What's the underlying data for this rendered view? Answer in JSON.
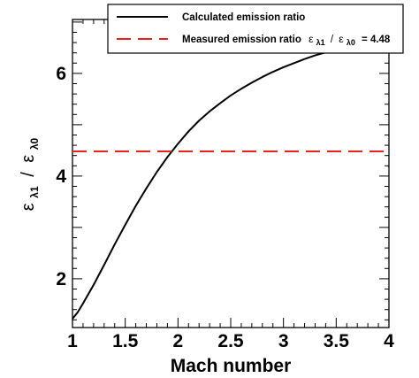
{
  "chart_data": {
    "type": "line",
    "title": "",
    "xlabel": "Mach number",
    "ylabel": {
      "sym1": "ε",
      "sub1": "λ1",
      "slash": "/",
      "sym2": "ε",
      "sub2": "λ0"
    },
    "xlim": [
      1,
      4
    ],
    "ylim": [
      1.05,
      7.05
    ],
    "x_ticks": [
      "1",
      "1.5",
      "2",
      "2.5",
      "3",
      "3.5",
      "4"
    ],
    "x_tick_values": [
      1,
      1.5,
      2,
      2.5,
      3,
      3.5,
      4
    ],
    "y_ticks": [
      "2",
      "4",
      "6"
    ],
    "y_tick_values": [
      2,
      4,
      6
    ],
    "grid": false,
    "legend_position": "top-right",
    "series": [
      {
        "name": "Calculated emission ratio",
        "color": "#000000",
        "style": "solid",
        "x": [
          1.0,
          1.05,
          1.1,
          1.2,
          1.3,
          1.4,
          1.5,
          1.6,
          1.7,
          1.8,
          1.9,
          2.0,
          2.1,
          2.2,
          2.3,
          2.4,
          2.5,
          2.6,
          2.7,
          2.8,
          2.9,
          3.0,
          3.1,
          3.2,
          3.3,
          3.4,
          3.5,
          3.6,
          3.65
        ],
        "y": [
          1.22,
          1.35,
          1.52,
          1.88,
          2.27,
          2.67,
          3.05,
          3.42,
          3.76,
          4.08,
          4.37,
          4.63,
          4.87,
          5.08,
          5.26,
          5.42,
          5.57,
          5.7,
          5.82,
          5.93,
          6.03,
          6.12,
          6.2,
          6.28,
          6.35,
          6.41,
          6.47,
          6.52,
          6.55
        ]
      },
      {
        "name": "Measured emission ratio",
        "legend_suffix": {
          "sym1": "ε",
          "sub1": "λ1",
          "slash": "/",
          "sym2": "ε",
          "sub2": "λ0",
          "value_text": "= 4.48"
        },
        "color": "#e8231c",
        "style": "dashed",
        "x": [
          1,
          4
        ],
        "y": [
          4.48,
          4.48
        ]
      }
    ]
  }
}
